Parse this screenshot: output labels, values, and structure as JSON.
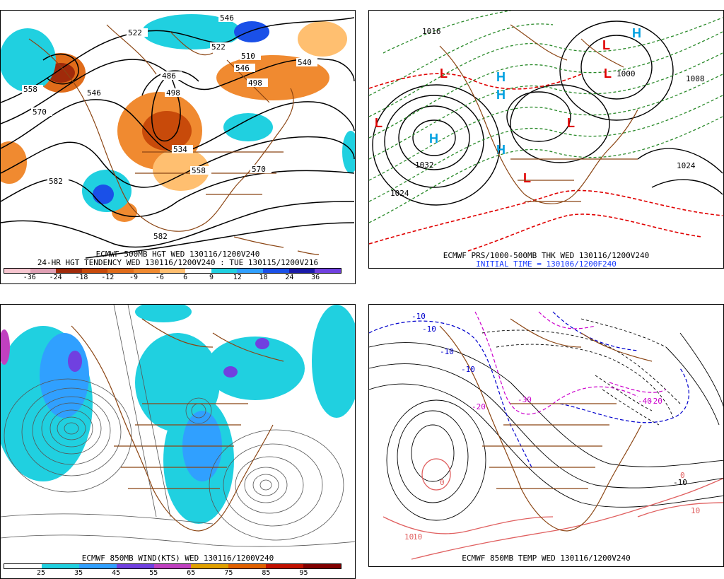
{
  "panels": {
    "p1": {
      "caption_1": "ECMWF 500MB HGT WED 130116/1200V240",
      "caption_2": "24-HR HGT TENDENCY WED 130116/1200V240 : TUE 130115/1200V216",
      "contour_labels": [
        "522",
        "546",
        "558",
        "570",
        "582",
        "522",
        "486",
        "498",
        "546",
        "498",
        "534",
        "558",
        "570",
        "582",
        "540",
        "510",
        "546"
      ],
      "legend": {
        "values": [
          "-36",
          "-24",
          "-18",
          "-12",
          "-9",
          "-6",
          "6",
          "9",
          "12",
          "18",
          "24",
          "36"
        ],
        "colors": [
          "#f7c6d0",
          "#e0a0b4",
          "#a02a0a",
          "#c84a0a",
          "#e06c1a",
          "#f08a30",
          "#ffbf70",
          "#ffffff",
          "#20d0e0",
          "#30a0ff",
          "#1a50e8",
          "#1a1aa8",
          "#7040e0"
        ]
      }
    },
    "p2": {
      "caption_1": "ECMWF PRS/1000-500MB THK WED 130116/1200V240",
      "caption_2": "INITIAL TIME = 130106/1200F240",
      "contour_labels": [
        "1032",
        "1024",
        "1024",
        "1016",
        "1008",
        "1000"
      ],
      "centers": [
        "H",
        "H",
        "H",
        "H",
        "H",
        "L",
        "L",
        "L",
        "L",
        "L",
        "L"
      ]
    },
    "p3": {
      "caption_1": "ECMWF 850MB WIND(KTS) WED 130116/1200V240",
      "legend": {
        "values": [
          "25",
          "35",
          "45",
          "55",
          "65",
          "75",
          "85",
          "95"
        ],
        "colors": [
          "#ffffff",
          "#20d0e0",
          "#30a0ff",
          "#7040e0",
          "#c040c0",
          "#e0a000",
          "#e06000",
          "#c01000",
          "#800000"
        ]
      }
    },
    "p4": {
      "caption_1": "ECMWF 850MB TEMP WED 130116/1200V240",
      "contour_labels": [
        "-10",
        "-10",
        "-10",
        "-10",
        "-20",
        "-30",
        "-40",
        "-20",
        "-10",
        "0",
        "10",
        "0",
        "10",
        "10"
      ]
    }
  },
  "colors": {
    "heights": "#000000",
    "coast": "#8b4513",
    "low": "#e00000",
    "high": "#00a0e0",
    "thickness_cold": "#2a8a2a",
    "thickness_warm": "#e00000",
    "wind_iso": "#555555",
    "temp_cold": "#0000cc",
    "temp_vcold": "#cc00cc",
    "temp_warm": "#e06060"
  }
}
